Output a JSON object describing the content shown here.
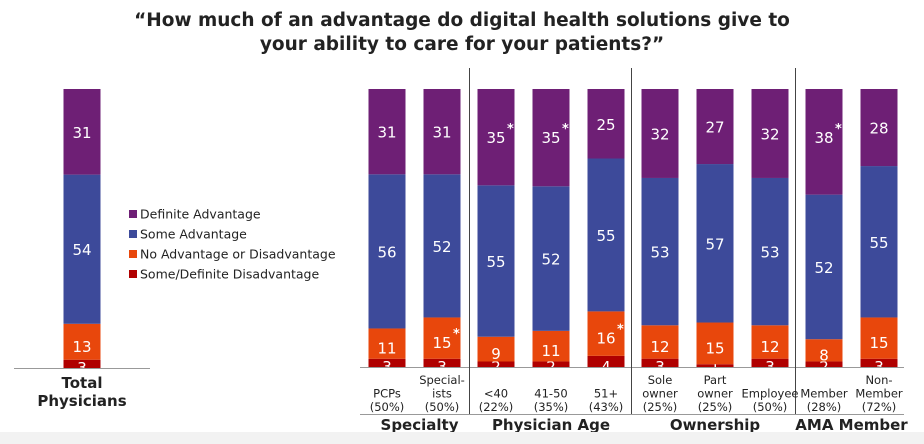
{
  "chart_data": {
    "type": "bar",
    "stacked": true,
    "orientation": "vertical",
    "title": "“How much of an advantage do digital health solutions give to your ability to care for your patients?”",
    "title_lines": [
      "“How much of an advantage do digital health solutions give to",
      "your ability to care for your patients?”"
    ],
    "ylim": [
      0,
      100
    ],
    "unit": "percent",
    "grid": false,
    "legend_position": "center-left",
    "series": [
      {
        "name": "Some/Definite Disadvantage",
        "color": "#b00000"
      },
      {
        "name": "No Advantage or Disadvantage",
        "color": "#e8470c"
      },
      {
        "name": "Some Advantage",
        "color": "#3d4a9a"
      },
      {
        "name": "Definite Advantage",
        "color": "#6e1f75"
      }
    ],
    "legend_order": [
      "Definite Advantage",
      "Some Advantage",
      "No Advantage or Disadvantage",
      "Some/Definite Disadvantage"
    ],
    "total": {
      "label_lines": [
        "Total",
        "Physicians"
      ],
      "values": [
        3,
        13,
        54,
        31
      ],
      "stars": [
        false,
        false,
        false,
        false
      ]
    },
    "groups": [
      {
        "name": "Specialty",
        "bars": [
          {
            "label_lines": [
              "PCPs",
              "(50%)"
            ],
            "values": [
              3,
              11,
              56,
              31
            ],
            "stars": [
              false,
              false,
              false,
              false
            ]
          },
          {
            "label_lines": [
              "Special-",
              "ists",
              "(50%)"
            ],
            "values": [
              3,
              15,
              52,
              31
            ],
            "stars": [
              false,
              true,
              false,
              false
            ]
          }
        ]
      },
      {
        "name": "Physician Age",
        "bars": [
          {
            "label_lines": [
              "<40",
              "(22%)"
            ],
            "values": [
              2,
              9,
              55,
              35
            ],
            "stars": [
              false,
              false,
              false,
              true
            ]
          },
          {
            "label_lines": [
              "41-50",
              "(35%)"
            ],
            "values": [
              2,
              11,
              52,
              35
            ],
            "stars": [
              false,
              false,
              false,
              true
            ]
          },
          {
            "label_lines": [
              "51+",
              "(43%)"
            ],
            "values": [
              4,
              16,
              55,
              25
            ],
            "stars": [
              false,
              true,
              false,
              false
            ]
          }
        ]
      },
      {
        "name": "Ownership",
        "bars": [
          {
            "label_lines": [
              "Sole",
              "owner",
              "(25%)"
            ],
            "values": [
              3,
              12,
              53,
              32
            ],
            "stars": [
              false,
              false,
              false,
              false
            ]
          },
          {
            "label_lines": [
              "Part",
              "owner",
              "(25%)"
            ],
            "values": [
              1,
              15,
              57,
              27
            ],
            "stars": [
              false,
              false,
              false,
              false
            ]
          },
          {
            "label_lines": [
              "Employee",
              "(50%)"
            ],
            "values": [
              3,
              12,
              53,
              32
            ],
            "stars": [
              false,
              false,
              false,
              false
            ]
          }
        ]
      },
      {
        "name": "AMA Member",
        "bars": [
          {
            "label_lines": [
              "Member",
              "(28%)"
            ],
            "values": [
              2,
              8,
              52,
              38
            ],
            "stars": [
              false,
              false,
              false,
              true
            ]
          },
          {
            "label_lines": [
              "Non-",
              "Member",
              "(72%)"
            ],
            "values": [
              3,
              15,
              55,
              28
            ],
            "stars": [
              false,
              false,
              false,
              false
            ]
          }
        ]
      }
    ],
    "star_marker": "*"
  }
}
